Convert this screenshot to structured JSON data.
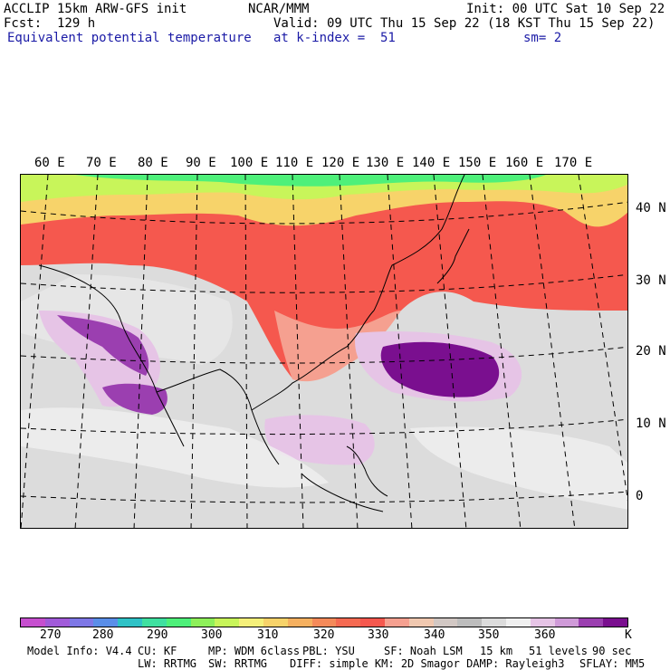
{
  "header": {
    "model": "ACCLIP 15km ARW-GFS init",
    "org": "NCAR/MMM",
    "init": "Init: 00 UTC Sat 10 Sep 22",
    "fcst": "Fcst:  129 h",
    "valid": "Valid: 09 UTC Thu 15 Sep 22 (18 KST Thu 15 Sep 22)",
    "field": "Equivalent potential temperature",
    "level": "at k-index =  51",
    "smooth": "sm= 2"
  },
  "map": {
    "lon_labels": [
      "60 E",
      "70 E",
      "80 E",
      "90 E",
      "100 E",
      "110 E",
      "120 E",
      "130 E",
      "140 E",
      "150 E",
      "160 E",
      "170 E"
    ],
    "lat_labels": [
      "40 N",
      "30 N",
      "20 N",
      "10 N",
      "0"
    ]
  },
  "colorbar": {
    "unit": "K",
    "labels": [
      "270",
      "280",
      "290",
      "300",
      "310",
      "320",
      "330",
      "340",
      "350",
      "360"
    ],
    "colors": [
      "#c64fcf",
      "#a15bd9",
      "#7e77e6",
      "#5a8ee8",
      "#2fc2c6",
      "#3fe0a0",
      "#4ef07a",
      "#8ef05a",
      "#c8f55a",
      "#f5f07a",
      "#f7d36a",
      "#f5b060",
      "#f58a5a",
      "#f56a52",
      "#f5584e",
      "#f5a090",
      "#f0c8b0",
      "#d2c8c4",
      "#bdbdbd",
      "#dcdcdc",
      "#f0f0f0",
      "#e6c4e6",
      "#cf9ad8",
      "#9b3fb0",
      "#7a0f8f"
    ]
  },
  "footer": {
    "line1": [
      "Model Info: V4.4",
      "CU: KF",
      "MP: WDM 6class",
      "PBL: YSU",
      "SF: Noah LSM",
      "15 km",
      "51 levels",
      "90 sec"
    ],
    "line2": [
      "LW: RRTMG",
      "SW: RRTMG",
      "DIFF: simple KM: 2D Smagor DAMP: Rayleigh3",
      "SFLAY: MM5"
    ]
  }
}
